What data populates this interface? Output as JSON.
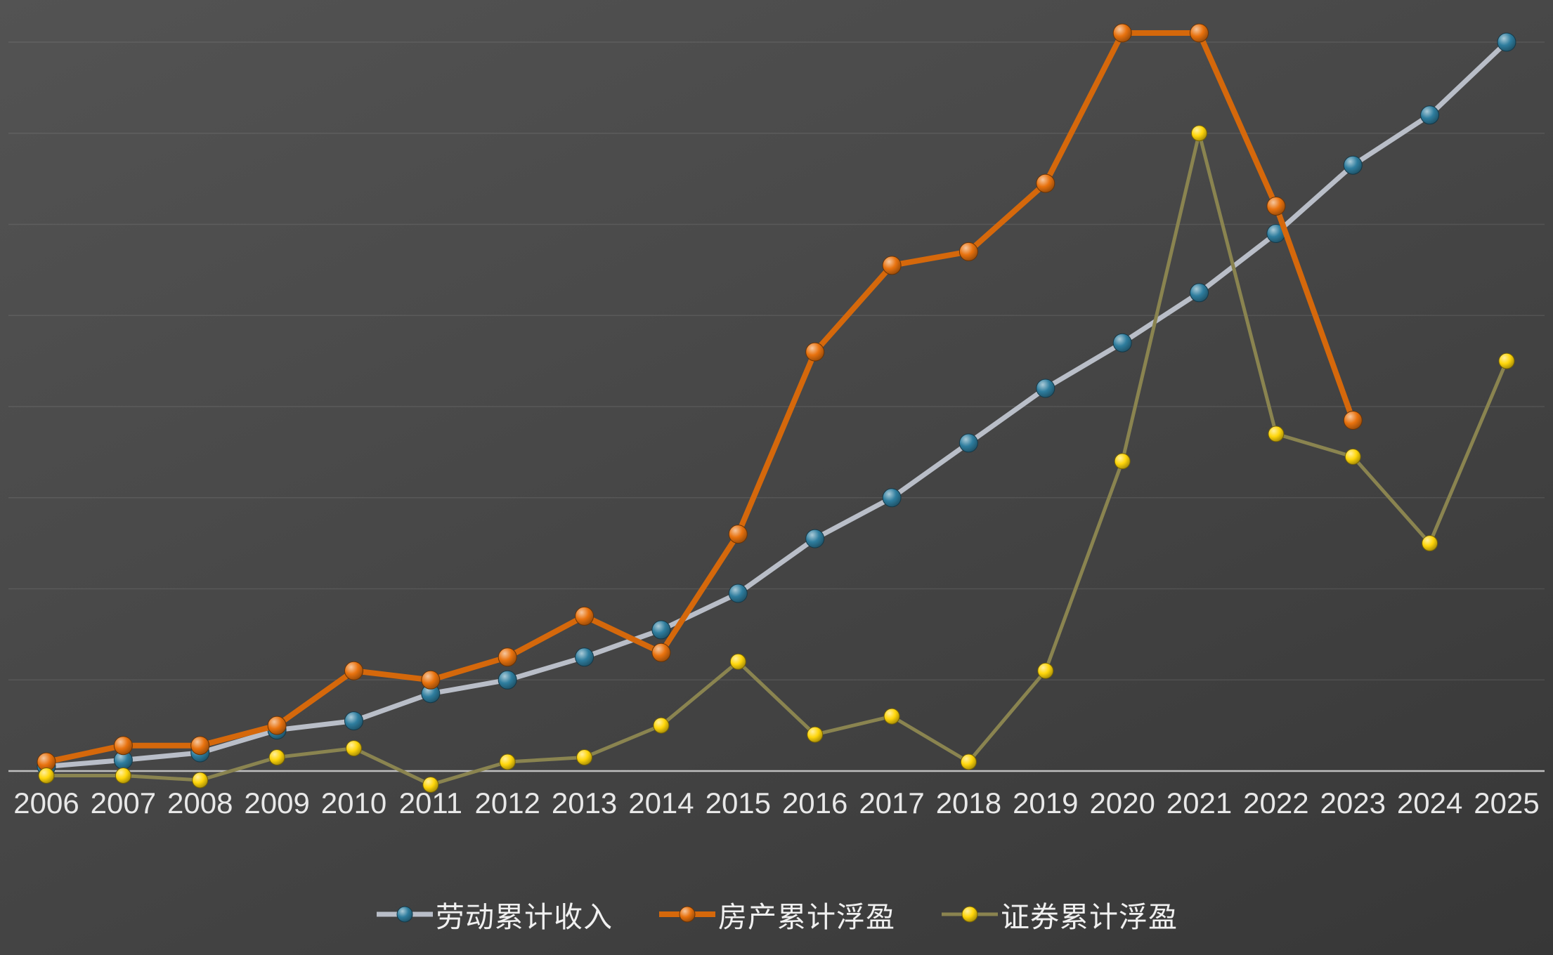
{
  "chart_data": {
    "type": "line",
    "title": "",
    "categories": [
      "2006",
      "2007",
      "2008",
      "2009",
      "2010",
      "2011",
      "2012",
      "2013",
      "2014",
      "2015",
      "2016",
      "2017",
      "2018",
      "2019",
      "2020",
      "2021",
      "2022",
      "2023",
      "2024",
      "2025"
    ],
    "series": [
      {
        "name": "劳动累计收入",
        "line_color": "#b9bec8",
        "marker_color": "#2e7d9e",
        "values": [
          5,
          12,
          20,
          45,
          55,
          85,
          100,
          125,
          155,
          195,
          255,
          300,
          360,
          420,
          470,
          525,
          590,
          665,
          720,
          800
        ]
      },
      {
        "name": "房产累计浮盈",
        "line_color": "#d5680b",
        "marker_color": "#e8720e",
        "values": [
          10,
          28,
          28,
          50,
          110,
          100,
          125,
          170,
          130,
          260,
          460,
          555,
          570,
          645,
          810,
          810,
          620,
          385,
          null,
          null
        ]
      },
      {
        "name": "证券累计浮盈",
        "line_color": "#8a8450",
        "marker_color": "#ffd60a",
        "values": [
          -5,
          -5,
          -10,
          15,
          25,
          -15,
          10,
          15,
          50,
          120,
          40,
          60,
          10,
          110,
          340,
          700,
          370,
          345,
          250,
          450
        ]
      }
    ],
    "ylim": [
      -50,
      850
    ],
    "gridline_step": 100,
    "grid": true,
    "xlabel": "",
    "ylabel": "",
    "legend_position": "bottom",
    "colors": {
      "background_top": "#535353",
      "background_bottom": "#373737",
      "gridline": "rgba(255,255,255,0.09)",
      "baseline": "#bfbfbf",
      "axis_text": "#e8e8e8"
    }
  }
}
